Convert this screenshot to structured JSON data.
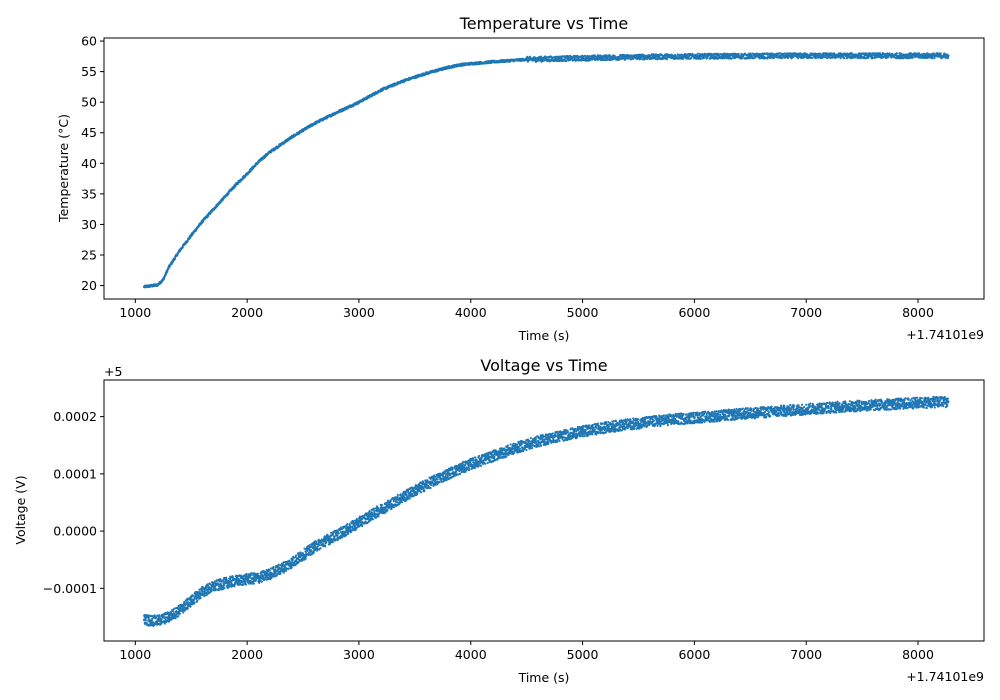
{
  "chart_data": [
    {
      "type": "scatter",
      "title": "Temperature vs Time",
      "xlabel": "Time (s)",
      "ylabel": "Temperature (°C)",
      "x_offset_label": "+1.74101e9",
      "xlim": [
        720,
        8590
      ],
      "ylim": [
        17.8,
        60.5
      ],
      "xticks": [
        1000,
        2000,
        3000,
        4000,
        5000,
        6000,
        7000,
        8000
      ],
      "xtick_labels": [
        "1000",
        "2000",
        "3000",
        "4000",
        "5000",
        "6000",
        "7000",
        "8000"
      ],
      "yticks": [
        20,
        25,
        30,
        35,
        40,
        45,
        50,
        55,
        60
      ],
      "ytick_labels": [
        "20",
        "25",
        "30",
        "35",
        "40",
        "45",
        "50",
        "55",
        "60"
      ],
      "color": "#1f77b4",
      "grid": false,
      "series": [
        {
          "x": [
            1080,
            1200,
            1250,
            1300,
            1400,
            1500,
            1600,
            1700,
            1800,
            1900,
            2000,
            2100,
            2200,
            2400,
            2600,
            2800,
            3000,
            3100,
            3200,
            3400,
            3600,
            3800,
            3900,
            4000,
            4200,
            4500,
            5000,
            5500,
            6000,
            7000,
            8000,
            8270
          ],
          "y": [
            19.8,
            20.1,
            21.0,
            23.0,
            25.8,
            28.2,
            30.5,
            32.5,
            34.5,
            36.5,
            38.3,
            40.2,
            41.8,
            44.3,
            46.5,
            48.3,
            50.0,
            51.0,
            52.0,
            53.5,
            54.7,
            55.7,
            56.1,
            56.3,
            56.6,
            57.0,
            57.2,
            57.4,
            57.5,
            57.6,
            57.6,
            57.6
          ]
        }
      ]
    },
    {
      "type": "scatter",
      "title": "Voltage vs Time",
      "xlabel": "Time (s)",
      "ylabel": "Voltage (V)",
      "x_offset_label": "+1.74101e9",
      "y_offset_label": "+5",
      "xlim": [
        720,
        8590
      ],
      "ylim": [
        -0.000192,
        0.000264
      ],
      "xticks": [
        1000,
        2000,
        3000,
        4000,
        5000,
        6000,
        7000,
        8000
      ],
      "xtick_labels": [
        "1000",
        "2000",
        "3000",
        "4000",
        "5000",
        "6000",
        "7000",
        "8000"
      ],
      "yticks": [
        -0.0001,
        0,
        0.0001,
        0.0002
      ],
      "ytick_labels": [
        "−0.0001",
        "0.0000",
        "0.0001",
        "0.0002"
      ],
      "color": "#1f77b4",
      "grid": false,
      "series": [
        {
          "x": [
            1080,
            1200,
            1300,
            1400,
            1500,
            1600,
            1700,
            1800,
            1900,
            2000,
            2100,
            2200,
            2300,
            2400,
            2500,
            2600,
            2700,
            2800,
            2900,
            3000,
            3200,
            3400,
            3600,
            3800,
            4000,
            4200,
            4400,
            4600,
            4800,
            5000,
            5200,
            5400,
            5600,
            5800,
            6000,
            6200,
            6500,
            6800,
            7000,
            7300,
            7600,
            8000,
            8270
          ],
          "y": [
            -0.000155,
            -0.000157,
            -0.00015,
            -0.000138,
            -0.000122,
            -0.000106,
            -9.7e-05,
            -9.1e-05,
            -8.7e-05,
            -8.4e-05,
            -8.2e-05,
            -7.5e-05,
            -6.6e-05,
            -5.5e-05,
            -4.2e-05,
            -2.8e-05,
            -1.7e-05,
            -7e-06,
            3e-06,
            1.5e-05,
            3.8e-05,
            6e-05,
            8.1e-05,
            0.0001,
            0.000117,
            0.000131,
            0.000145,
            0.000157,
            0.000166,
            0.000174,
            0.000181,
            0.000186,
            0.000191,
            0.000195,
            0.000198,
            0.000201,
            0.000206,
            0.00021,
            0.000213,
            0.000217,
            0.00022,
            0.000224,
            0.000226
          ]
        }
      ]
    }
  ]
}
